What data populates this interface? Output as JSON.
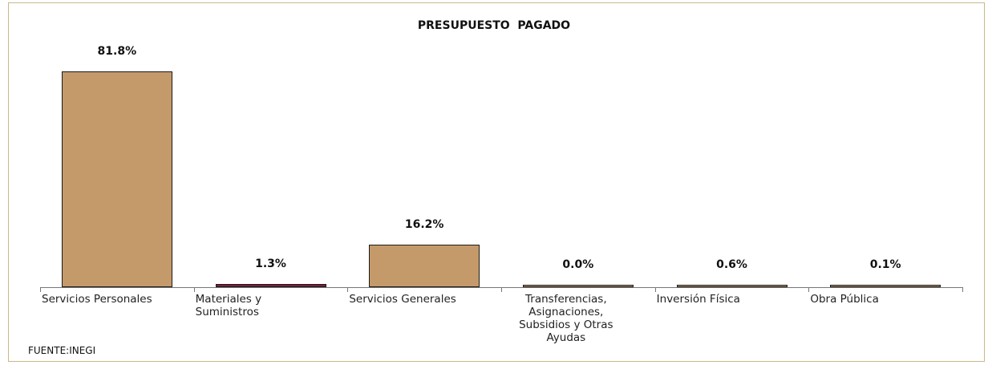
{
  "chart_data": {
    "type": "bar",
    "title": "PRESUPUESTO  PAGADO",
    "categories": [
      "Servicios Personales",
      "Materiales y Suministros",
      "Servicios Generales",
      "Transferencias, Asignaciones, Subsidios y Otras Ayudas",
      "Inversión Física",
      "Obra Pública"
    ],
    "values": [
      81.8,
      1.3,
      16.2,
      0.0,
      0.6,
      0.1
    ],
    "value_labels": [
      "81.8%",
      "1.3%",
      "16.2%",
      "0.0%",
      "0.6%",
      "0.1%"
    ],
    "colors": [
      "#c49a6a",
      "#7b1f3a",
      "#c49a6a",
      "#c49a6a",
      "#c49a6a",
      "#c49a6a"
    ],
    "source": "FUENTE:INEGI"
  }
}
